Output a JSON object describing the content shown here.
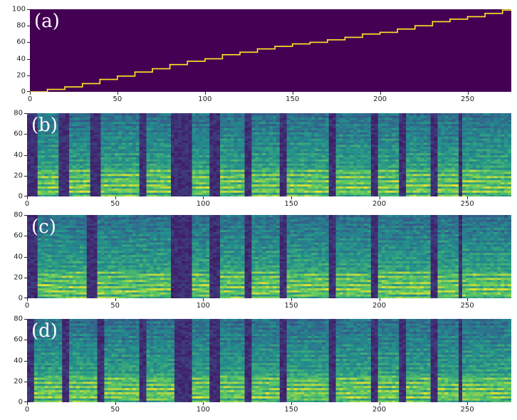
{
  "chart_data": [
    {
      "type": "heatmap",
      "label": "(a)",
      "title": "",
      "xlabel": "",
      "ylabel": "",
      "xlim": [
        0,
        275
      ],
      "ylim": [
        0,
        100
      ],
      "xticks": [
        "0",
        "50",
        "100",
        "150",
        "200",
        "250"
      ],
      "xtick_values": [
        0,
        50,
        100,
        150,
        200,
        250
      ],
      "yticks": [
        "0",
        "20",
        "40",
        "60",
        "80",
        "100"
      ],
      "ytick_values": [
        0,
        20,
        40,
        60,
        80,
        100
      ],
      "background_color": "#440154",
      "line_color": "#fde725",
      "alignment_path": {
        "x": [
          0,
          10,
          20,
          30,
          40,
          50,
          60,
          70,
          80,
          90,
          100,
          110,
          120,
          130,
          140,
          150,
          160,
          170,
          180,
          190,
          200,
          210,
          220,
          230,
          240,
          250,
          260,
          270,
          275
        ],
        "y": [
          0,
          3,
          6,
          10,
          15,
          19,
          24,
          28,
          33,
          37,
          40,
          45,
          48,
          52,
          55,
          58,
          60,
          63,
          66,
          70,
          72,
          76,
          80,
          85,
          88,
          91,
          95,
          99,
          100
        ]
      }
    },
    {
      "type": "heatmap",
      "label": "(b)",
      "xlim": [
        0,
        275
      ],
      "ylim": [
        0,
        80
      ],
      "xticks": [
        "0",
        "50",
        "100",
        "150",
        "200",
        "250"
      ],
      "xtick_values": [
        0,
        50,
        100,
        150,
        200,
        250
      ],
      "yticks": [
        "0",
        "20",
        "40",
        "60",
        "80"
      ],
      "ytick_values": [
        0,
        20,
        40,
        60,
        80
      ],
      "colormap": "viridis",
      "silences": [
        [
          0,
          5
        ],
        [
          18,
          24
        ],
        [
          36,
          41
        ],
        [
          64,
          67
        ],
        [
          82,
          94
        ],
        [
          104,
          110
        ],
        [
          124,
          127
        ],
        [
          144,
          148
        ],
        [
          172,
          176
        ],
        [
          195,
          200
        ],
        [
          212,
          215
        ],
        [
          229,
          233
        ],
        [
          245,
          248
        ]
      ],
      "harmonic_spacing": 5.0
    },
    {
      "type": "heatmap",
      "label": "(c)",
      "xlim": [
        0,
        275
      ],
      "ylim": [
        0,
        80
      ],
      "xticks": [
        "0",
        "50",
        "100",
        "150",
        "200",
        "250"
      ],
      "xtick_values": [
        0,
        50,
        100,
        150,
        200,
        250
      ],
      "yticks": [
        "0",
        "20",
        "40",
        "60",
        "80"
      ],
      "ytick_values": [
        0,
        20,
        40,
        60,
        80
      ],
      "colormap": "viridis",
      "silences": [
        [
          0,
          5
        ],
        [
          34,
          40
        ],
        [
          82,
          94
        ],
        [
          104,
          110
        ],
        [
          124,
          127
        ],
        [
          144,
          148
        ],
        [
          172,
          176
        ],
        [
          195,
          200
        ],
        [
          229,
          233
        ],
        [
          245,
          248
        ]
      ],
      "harmonic_spacing": 3.4
    },
    {
      "type": "heatmap",
      "label": "(d)",
      "xlim": [
        0,
        275
      ],
      "ylim": [
        0,
        80
      ],
      "xticks": [
        "0",
        "50",
        "100",
        "150",
        "200",
        "250"
      ],
      "xtick_values": [
        0,
        50,
        100,
        150,
        200,
        250
      ],
      "yticks": [
        "0",
        "20",
        "40",
        "60",
        "80"
      ],
      "ytick_values": [
        0,
        20,
        40,
        60,
        80
      ],
      "colormap": "viridis",
      "silences": [
        [
          0,
          4
        ],
        [
          20,
          23
        ],
        [
          40,
          43
        ],
        [
          64,
          67
        ],
        [
          84,
          94
        ],
        [
          104,
          110
        ],
        [
          124,
          127
        ],
        [
          144,
          148
        ],
        [
          172,
          176
        ],
        [
          195,
          200
        ],
        [
          212,
          215
        ],
        [
          229,
          233
        ],
        [
          245,
          248
        ]
      ],
      "harmonic_spacing": 4.6
    }
  ]
}
